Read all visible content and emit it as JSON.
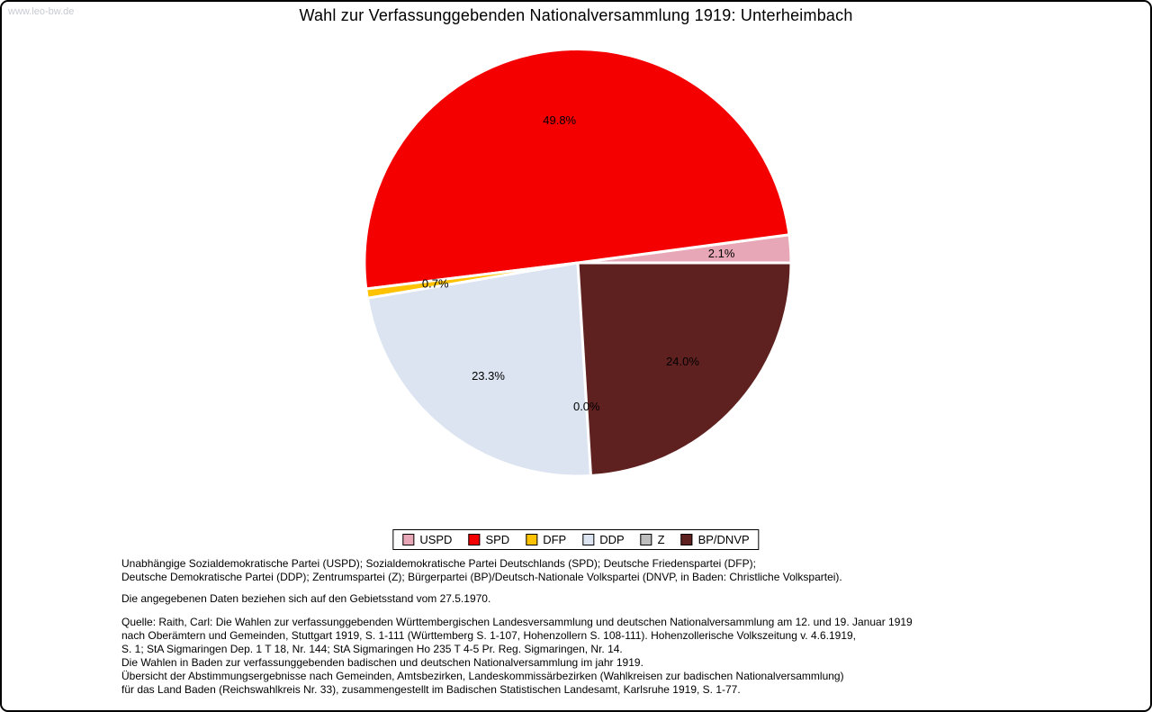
{
  "page": {
    "watermark": "www.leo-bw.de",
    "title": "Wahl zur Verfassunggebenden Nationalversammlung 1919: Unterheimbach"
  },
  "chart_data": {
    "type": "pie",
    "title": "Wahl zur Verfassunggebenden Nationalversammlung 1919: Unterheimbach",
    "series": [
      {
        "label": "USPD",
        "value": 2.1,
        "color": "#E8A7B6"
      },
      {
        "label": "SPD",
        "value": 49.8,
        "color": "#F40000"
      },
      {
        "label": "DFP",
        "value": 0.7,
        "color": "#FFC200"
      },
      {
        "label": "DDP",
        "value": 23.3,
        "color": "#DBE4F0"
      },
      {
        "label": "Z",
        "value": 0.0,
        "color": "#BEBEBE"
      },
      {
        "label": "BP/DNVP",
        "value": 24.0,
        "color": "#5F2120"
      }
    ],
    "start_angle_deg": 0,
    "direction": "counterclockwise",
    "slice_label_format": "one-decimal-percent",
    "slice_labels": [
      "2.1%",
      "49.8%",
      "0.7%",
      "23.3%",
      "0.0%",
      "24.0%"
    ],
    "legend_position": "bottom",
    "legend_order": [
      "USPD",
      "SPD",
      "DFP",
      "DDP",
      "Z",
      "BP/DNVP"
    ]
  },
  "footnotes": {
    "party_key_lines": [
      "Unabhängige Sozialdemokratische Partei (USPD); Sozialdemokratische Partei Deutschlands (SPD); Deutsche Friedenspartei (DFP);",
      "Deutsche Demokratische Partei (DDP); Zentrumspartei (Z); Bürgerpartei (BP)/Deutsch-Nationale Volkspartei (DNVP, in Baden: Christliche Volkspartei)."
    ],
    "data_note": "Die angegebenen Daten beziehen sich auf den Gebietsstand vom 27.5.1970.",
    "source_lines": [
      "Quelle: Raith, Carl: Die Wahlen zur verfassunggebenden Württembergischen Landesversammlung und deutschen Nationalversammlung am 12. und 19. Januar 1919",
      "nach Oberämtern und Gemeinden, Stuttgart 1919, S. 1-111 (Württemberg S. 1-107, Hohenzollern S. 108-111). Hohenzollerische Volkszeitung v. 4.6.1919,",
      "S. 1; StA Sigmaringen Dep. 1 T 18, Nr. 144; StA Sigmaringen Ho 235 T 4-5 Pr. Reg. Sigmaringen, Nr. 14.",
      "Die Wahlen in Baden zur verfassunggebenden badischen und deutschen Nationalversammlung im jahr 1919.",
      "Übersicht der Abstimmungsergebnisse nach Gemeinden, Amtsbezirken, Landeskommissärbezirken (Wahlkreisen zur badischen Nationalversammlung)",
      "für das Land Baden (Reichswahlkreis Nr. 33), zusammengestellt im Badischen Statistischen Landesamt, Karlsruhe 1919, S. 1-77."
    ]
  }
}
